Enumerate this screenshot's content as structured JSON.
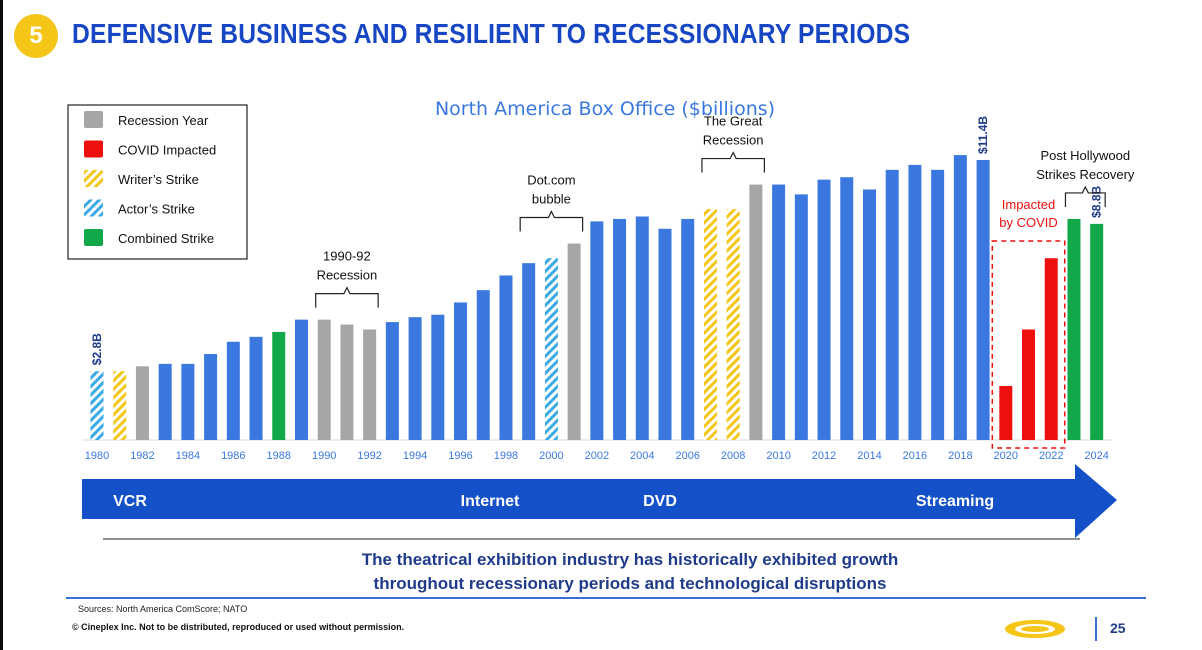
{
  "slide": {
    "number": "5",
    "title": "DEFENSIVE BUSINESS AND RESILIENT TO RECESSIONARY PERIODS",
    "takeaway_line1": "The theatrical exhibition industry has historically exhibited growth",
    "takeaway_line2": "throughout recessionary periods and technological disruptions",
    "sources": "Sources: North America ComScore; NATO",
    "copyright": "© Cineplex Inc. Not to be distributed, reproduced or used without permission.",
    "page": "25"
  },
  "colors": {
    "title": "#1746c4",
    "normal": "#3a78e0",
    "recession": "#a6a6a6",
    "covid": "#ee0f0f",
    "writers": "#f5c518",
    "actors": "#3aa9e6",
    "combined": "#12a84a",
    "arrow": "#1450c8"
  },
  "chart_data": {
    "type": "bar",
    "title": "North America Box Office ($billions)",
    "x_tick_labels": [
      "1980",
      "1982",
      "1984",
      "1986",
      "1988",
      "1990",
      "1992",
      "1994",
      "1996",
      "1998",
      "2000",
      "2002",
      "2004",
      "2006",
      "2008",
      "2010",
      "2012",
      "2014",
      "2016",
      "2018",
      "2020",
      "2022",
      "2024"
    ],
    "series": [
      {
        "year": 1980,
        "value": 2.8,
        "category": "actors"
      },
      {
        "year": 1981,
        "value": 2.8,
        "category": "writers"
      },
      {
        "year": 1982,
        "value": 3.0,
        "category": "recession"
      },
      {
        "year": 1983,
        "value": 3.1,
        "category": "normal"
      },
      {
        "year": 1984,
        "value": 3.1,
        "category": "normal"
      },
      {
        "year": 1985,
        "value": 3.5,
        "category": "normal"
      },
      {
        "year": 1986,
        "value": 4.0,
        "category": "normal"
      },
      {
        "year": 1987,
        "value": 4.2,
        "category": "normal"
      },
      {
        "year": 1988,
        "value": 4.4,
        "category": "combined"
      },
      {
        "year": 1989,
        "value": 4.9,
        "category": "normal"
      },
      {
        "year": 1990,
        "value": 4.9,
        "category": "recession"
      },
      {
        "year": 1991,
        "value": 4.7,
        "category": "recession"
      },
      {
        "year": 1992,
        "value": 4.5,
        "category": "recession"
      },
      {
        "year": 1993,
        "value": 4.8,
        "category": "normal"
      },
      {
        "year": 1994,
        "value": 5.0,
        "category": "normal"
      },
      {
        "year": 1995,
        "value": 5.1,
        "category": "normal"
      },
      {
        "year": 1996,
        "value": 5.6,
        "category": "normal"
      },
      {
        "year": 1997,
        "value": 6.1,
        "category": "normal"
      },
      {
        "year": 1998,
        "value": 6.7,
        "category": "normal"
      },
      {
        "year": 1999,
        "value": 7.2,
        "category": "normal"
      },
      {
        "year": 2000,
        "value": 7.4,
        "category": "actors"
      },
      {
        "year": 2001,
        "value": 8.0,
        "category": "recession"
      },
      {
        "year": 2002,
        "value": 8.9,
        "category": "normal"
      },
      {
        "year": 2003,
        "value": 9.0,
        "category": "normal"
      },
      {
        "year": 2004,
        "value": 9.1,
        "category": "normal"
      },
      {
        "year": 2005,
        "value": 8.6,
        "category": "normal"
      },
      {
        "year": 2006,
        "value": 9.0,
        "category": "normal"
      },
      {
        "year": 2007,
        "value": 9.4,
        "category": "writers"
      },
      {
        "year": 2008,
        "value": 9.4,
        "category": "writers"
      },
      {
        "year": 2009,
        "value": 10.4,
        "category": "recession"
      },
      {
        "year": 2010,
        "value": 10.4,
        "category": "normal"
      },
      {
        "year": 2011,
        "value": 10.0,
        "category": "normal"
      },
      {
        "year": 2012,
        "value": 10.6,
        "category": "normal"
      },
      {
        "year": 2013,
        "value": 10.7,
        "category": "normal"
      },
      {
        "year": 2014,
        "value": 10.2,
        "category": "normal"
      },
      {
        "year": 2015,
        "value": 11.0,
        "category": "normal"
      },
      {
        "year": 2016,
        "value": 11.2,
        "category": "normal"
      },
      {
        "year": 2017,
        "value": 11.0,
        "category": "normal"
      },
      {
        "year": 2018,
        "value": 11.6,
        "category": "normal"
      },
      {
        "year": 2019,
        "value": 11.4,
        "category": "normal"
      },
      {
        "year": 2020,
        "value": 2.2,
        "category": "covid"
      },
      {
        "year": 2021,
        "value": 4.5,
        "category": "covid"
      },
      {
        "year": 2022,
        "value": 7.4,
        "category": "covid"
      },
      {
        "year": 2023,
        "value": 9.0,
        "category": "combined"
      },
      {
        "year": 2024,
        "value": 8.8,
        "category": "combined"
      }
    ],
    "ylim": [
      0,
      13
    ],
    "grid": false,
    "value_labels": [
      {
        "year": 1980,
        "text": "$2.8B"
      },
      {
        "year": 2019,
        "text": "$11.4B"
      },
      {
        "year": 2024,
        "text": "$8.8B"
      }
    ],
    "legend": [
      {
        "label": "Recession Year",
        "category": "recession"
      },
      {
        "label": "COVID Impacted",
        "category": "covid"
      },
      {
        "label": "Writer’s Strike",
        "category": "writers"
      },
      {
        "label": "Actor’s Strike",
        "category": "actors"
      },
      {
        "label": "Combined Strike",
        "category": "combined"
      }
    ],
    "legend_position": "top-left",
    "annotations": [
      {
        "lines": [
          "1990-92",
          "Recession"
        ],
        "from": 1990,
        "to": 1992
      },
      {
        "lines": [
          "Dot.com",
          "bubble"
        ],
        "from": 1999,
        "to": 2001
      },
      {
        "lines": [
          "The Great",
          "Recession"
        ],
        "from": 2007,
        "to": 2009
      },
      {
        "lines": [
          "Post Hollywood",
          "Strikes Recovery"
        ],
        "from": 2023,
        "to": 2024
      }
    ],
    "covid_box": {
      "lines": [
        "Impacted",
        "by COVID"
      ],
      "from": 2020,
      "to": 2022
    },
    "eras": [
      "VCR",
      "Internet",
      "DVD",
      "Streaming"
    ]
  }
}
